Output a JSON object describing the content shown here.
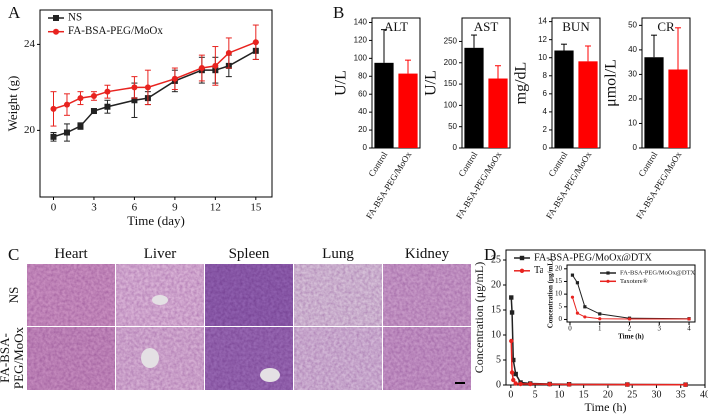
{
  "panel_labels": [
    "A",
    "B",
    "C",
    "D"
  ],
  "chart_data": [
    {
      "type": "line",
      "x_label": "Time (day)",
      "y_label": "Weight (g)",
      "legend": "upper left",
      "x": [
        0,
        1,
        2,
        3,
        4,
        6,
        7,
        9,
        11,
        12,
        13,
        15
      ],
      "xlim": [
        -1,
        16.2
      ],
      "ylim": [
        16.9,
        25.6
      ],
      "xticks": [
        0,
        3,
        6,
        9,
        12,
        15
      ],
      "yticks": [
        20,
        24
      ],
      "series": [
        {
          "name": "NS",
          "color": "#222222",
          "marker": "square",
          "values": [
            19.7,
            19.9,
            20.2,
            20.9,
            21.1,
            21.4,
            21.5,
            22.3,
            22.8,
            22.8,
            23.0,
            23.7
          ],
          "errors": [
            0.2,
            0.4,
            0.15,
            0.1,
            0.3,
            0.8,
            0.3,
            0.5,
            0.6,
            0.6,
            0.5,
            0.4
          ]
        },
        {
          "name": "FA-BSA-PEG/MoOx",
          "color": "#e8231f",
          "marker": "circle",
          "values": [
            21.0,
            21.2,
            21.5,
            21.6,
            21.8,
            22.0,
            22.0,
            22.4,
            22.9,
            23.0,
            23.6,
            24.1
          ],
          "errors": [
            0.8,
            0.5,
            0.3,
            0.2,
            0.3,
            0.5,
            0.8,
            0.5,
            0.6,
            0.9,
            0.7,
            0.8
          ]
        }
      ]
    },
    {
      "type": "bar",
      "title": "ALT",
      "y_label": "U/L",
      "categories": [
        "Control",
        "FA-BSA-PEG/MoOx"
      ],
      "values": [
        95,
        83
      ],
      "errors": [
        37,
        15
      ],
      "colors": [
        "#000000",
        "#ff0000"
      ],
      "ylim": [
        0,
        145
      ],
      "yticks": [
        0,
        20,
        40,
        60,
        80,
        100,
        120,
        140
      ]
    },
    {
      "type": "bar",
      "title": "AST",
      "y_label": "U/L",
      "categories": [
        "Control",
        "FA-BSA-PEG/MoOx"
      ],
      "values": [
        235,
        163
      ],
      "errors": [
        30,
        30
      ],
      "colors": [
        "#000000",
        "#ff0000"
      ],
      "ylim": [
        0,
        305
      ],
      "yticks": [
        0,
        50,
        100,
        150,
        200,
        250
      ]
    },
    {
      "type": "bar",
      "title": "BUN",
      "y_label": "mg/dL",
      "categories": [
        "Control",
        "FA-BSA-PEG/MoOx"
      ],
      "values": [
        10.8,
        9.6
      ],
      "errors": [
        0.7,
        1.7
      ],
      "colors": [
        "#000000",
        "#ff0000"
      ],
      "ylim": [
        0,
        14.4
      ],
      "yticks": [
        0,
        2,
        4,
        6,
        8,
        10,
        12,
        14
      ]
    },
    {
      "type": "bar",
      "title": "CR",
      "y_label": "μmol/L",
      "categories": [
        "Control",
        "FA-BSA-PEG/MoOx"
      ],
      "values": [
        37,
        32
      ],
      "errors": [
        9,
        17
      ],
      "colors": [
        "#000000",
        "#ff0000"
      ],
      "ylim": [
        0,
        53
      ],
      "yticks": [
        0,
        10,
        20,
        30,
        40,
        50
      ]
    },
    {
      "type": "line",
      "x_label": "Time (h)",
      "y_label": "Concentration (μg/mL)",
      "legend": "upper left",
      "x": [
        0.083,
        0.25,
        0.5,
        1,
        2,
        4,
        8,
        12,
        24,
        36
      ],
      "xlim": [
        -1,
        40
      ],
      "ylim": [
        0,
        27
      ],
      "xticks": [
        0,
        5,
        10,
        15,
        20,
        25,
        30,
        35,
        40
      ],
      "yticks": [
        0,
        5,
        10,
        15,
        20,
        25
      ],
      "series": [
        {
          "name": "FA-BSA-PEG/MoOx@DTX",
          "color": "#222222",
          "marker": "square",
          "values": [
            17.5,
            14.5,
            5.0,
            2.2,
            0.5,
            0.3,
            0.2,
            0.15,
            0.1,
            0.08
          ]
        },
        {
          "name": "Taxotere®",
          "color": "#e8231f",
          "marker": "circle",
          "values": [
            8.8,
            2.5,
            1.0,
            0.3,
            0.2,
            0.2,
            0.15,
            0.1,
            0.08,
            0.05
          ]
        }
      ]
    },
    {
      "type": "line",
      "x_label": "Time (h)",
      "y_label": "Concentration (μg/mL)",
      "legend": "upper right",
      "x": [
        0.083,
        0.25,
        0.5,
        1,
        2,
        4
      ],
      "xlim": [
        -0.1,
        4.2
      ],
      "ylim": [
        -1,
        21.5
      ],
      "xticks": [
        0,
        1,
        2,
        3,
        4
      ],
      "yticks": [
        0,
        5,
        10,
        15,
        20
      ],
      "series": [
        {
          "name": "FA-BSA-PEG/MoOx@DTX",
          "color": "#222222",
          "marker": "square",
          "values": [
            17.5,
            14.5,
            5.0,
            2.2,
            0.5,
            0.3
          ]
        },
        {
          "name": "Taxotere®",
          "color": "#e8231f",
          "marker": "circle",
          "values": [
            8.8,
            2.5,
            1.0,
            0.3,
            0.2,
            0.2
          ]
        }
      ]
    }
  ],
  "histology": {
    "columns": [
      "Heart",
      "Liver",
      "Spleen",
      "Lung",
      "Kidney"
    ],
    "rows": [
      "NS",
      "FA-BSA-PEG/MoOx"
    ]
  }
}
